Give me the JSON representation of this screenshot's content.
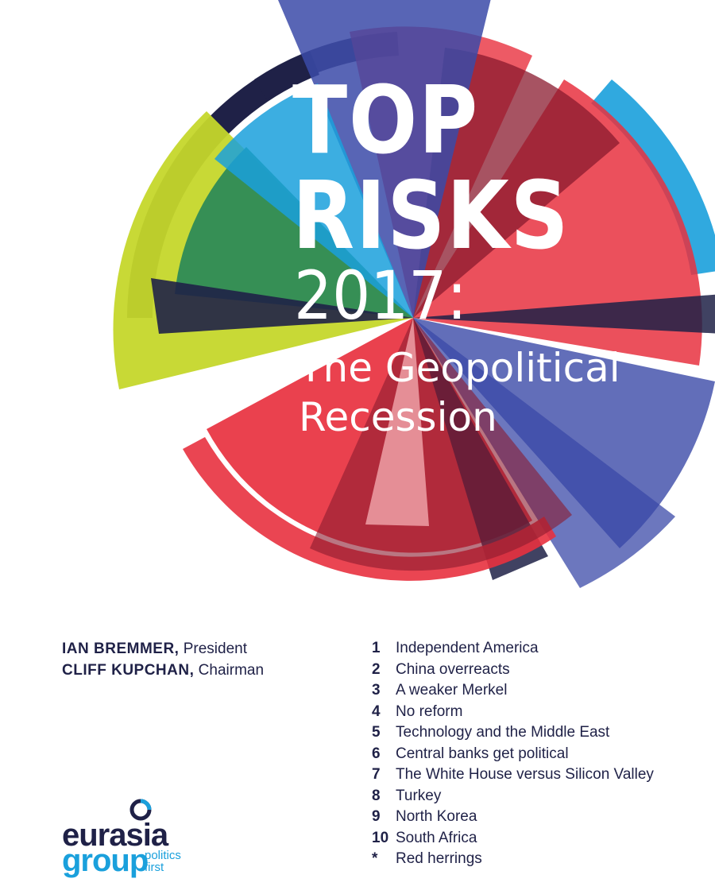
{
  "title": {
    "line1": "TOP",
    "line2": "RISKS",
    "year": "2017:",
    "subtitle_line1": "The Geopolitical",
    "subtitle_line2": "Recession"
  },
  "authors": [
    {
      "name": "IAN BREMMER,",
      "role": "President"
    },
    {
      "name": "CLIFF KUPCHAN,",
      "role": "Chairman"
    }
  ],
  "risks": [
    {
      "num": "1",
      "label": "Independent America"
    },
    {
      "num": "2",
      "label": "China overreacts"
    },
    {
      "num": "3",
      "label": "A weaker Merkel"
    },
    {
      "num": "4",
      "label": "No reform"
    },
    {
      "num": "5",
      "label": "Technology and the Middle East"
    },
    {
      "num": "6",
      "label": "Central banks get political"
    },
    {
      "num": "7",
      "label": "The White House versus Silicon Valley"
    },
    {
      "num": "8",
      "label": "Turkey"
    },
    {
      "num": "9",
      "label": "North Korea"
    },
    {
      "num": "10",
      "label": "South Africa"
    },
    {
      "num": "*",
      "label": "Red herrings"
    }
  ],
  "logo": {
    "word1": "eurasia",
    "word2": "group",
    "tagline1": "politics",
    "tagline2": "first"
  },
  "colors": {
    "navy": "#1f2147",
    "red": "#e8313f",
    "blue": "#1aa0dc",
    "lime": "#c5d72b",
    "green": "#2e8b57",
    "indigo": "#3b4aa8"
  }
}
